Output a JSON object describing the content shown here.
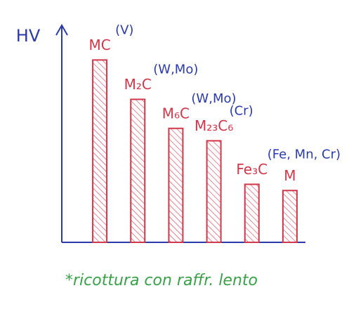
{
  "chart_data": {
    "type": "bar",
    "y_label": "HV",
    "categories": [
      "MC",
      "M₂C",
      "M₆C",
      "M₂₃C₆",
      "Fe₃C",
      "M"
    ],
    "element_labels": [
      "(V)",
      "(W,Mo)",
      "(W,Mo)",
      "(Cr)",
      "(Fe, Mn, Cr)",
      null
    ],
    "values": [
      88,
      69,
      55,
      49,
      28,
      25
    ],
    "ylim": [
      0,
      100
    ],
    "color": "#d0374a",
    "label_color": "#d0374a",
    "element_color": "#2a3aa8",
    "axis_color": "#2a3aa8",
    "note": "*ricottura con raffr. lento",
    "note_color": "#3aa04a"
  }
}
